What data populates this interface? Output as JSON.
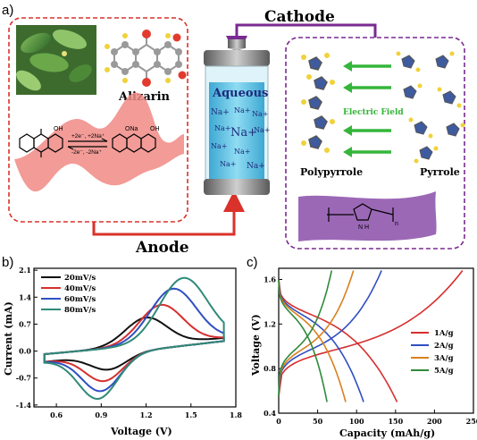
{
  "panel_a": {
    "label": "a)",
    "cathode_title": "Cathode",
    "anode_title": "Anode",
    "alizarin_label": "Alizarin",
    "jar_title": "Aqueous",
    "jar_ions": [
      "Na+",
      "Na+",
      "Na+",
      "Na+",
      "Na+",
      "Na+",
      "Na+",
      "Na+",
      "Na+",
      "Na+"
    ],
    "electric_field_label": "Electric Field",
    "polypyrrole_label": "Polypyrrole",
    "pyrrole_label": "Pyrrole",
    "reaction_forward": "+2e⁻, +2Na⁺",
    "reaction_backward": "-2e⁻, -2Na⁺",
    "oh_label": "OH",
    "ona_label": "ONa",
    "polymer_n": "n",
    "polymer_nh": "N H",
    "colors": {
      "anode": "#d9322b",
      "cathode": "#7a2a90",
      "field_arrow": "#35b53a",
      "jar_liquid": "#5cc2e4"
    }
  },
  "chart_data": [
    {
      "panel": "b)",
      "type": "line",
      "xlabel": "Voltage (V)",
      "ylabel": "Current (mA)",
      "xticks": [
        "0.6",
        "0.9",
        "1.2",
        "1.5",
        "1.8"
      ],
      "yticks": [
        "2.1",
        "1.4",
        "0.7",
        "0.0",
        "-0.7",
        "-1.4"
      ],
      "xlim": [
        0.45,
        1.8
      ],
      "ylim": [
        -1.45,
        2.15
      ],
      "series": [
        {
          "name": "20mV/s",
          "color": "#111111",
          "anodic_peak": [
            1.2,
            0.87
          ],
          "cathodic_peak": [
            0.95,
            -0.48
          ]
        },
        {
          "name": "40mV/s",
          "color": "#d62f2f",
          "anodic_peak": [
            1.3,
            1.2
          ],
          "cathodic_peak": [
            0.92,
            -0.78
          ]
        },
        {
          "name": "60mV/s",
          "color": "#2f4fc2",
          "anodic_peak": [
            1.38,
            1.62
          ],
          "cathodic_peak": [
            0.9,
            -1.04
          ]
        },
        {
          "name": "80mV/s",
          "color": "#2f8a78",
          "anodic_peak": [
            1.45,
            1.9
          ],
          "cathodic_peak": [
            0.88,
            -1.24
          ]
        }
      ]
    },
    {
      "panel": "c)",
      "type": "line",
      "xlabel": "Capacity (mAh/g)",
      "ylabel": "Voltage (V)",
      "xticks": [
        "0",
        "50",
        "100",
        "150",
        "200",
        "250"
      ],
      "yticks": [
        "1.6",
        "1.2",
        "0.8",
        "0.4"
      ],
      "xlim": [
        0,
        250
      ],
      "ylim": [
        0.4,
        1.7
      ],
      "series": [
        {
          "name": "1A/g",
          "color": "#d62f2f",
          "charge_capacity": 236,
          "discharge_capacity": 152
        },
        {
          "name": "2A/g",
          "color": "#2f4fc2",
          "charge_capacity": 132,
          "discharge_capacity": 109
        },
        {
          "name": "3A/g",
          "color": "#d9801f",
          "charge_capacity": 96,
          "discharge_capacity": 86
        },
        {
          "name": "5A/g",
          "color": "#2f8a3a",
          "charge_capacity": 68,
          "discharge_capacity": 62
        }
      ]
    }
  ]
}
